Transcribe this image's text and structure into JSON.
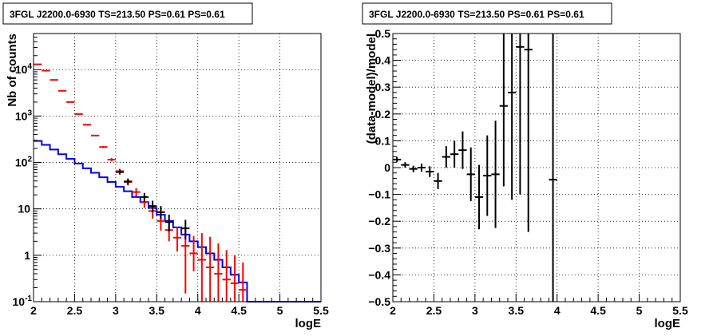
{
  "chart_data": [
    {
      "type": "scatter",
      "title": "3FGL J2200.0-6930 TS=213.50 PS=0.61 PS=0.61",
      "xlabel": "logE",
      "ylabel": "Nb of counts",
      "xlim": [
        2,
        5.5
      ],
      "ylim": [
        0.1,
        60000
      ],
      "ylog": true,
      "grid": true,
      "xticks": [
        "2",
        "2.5",
        "3",
        "3.5",
        "4",
        "4.5",
        "5",
        "5.5"
      ],
      "yticks": [
        {
          "value": 0.1,
          "label": "10",
          "sup": "-1"
        },
        {
          "value": 1,
          "label": "1",
          "sup": ""
        },
        {
          "value": 10,
          "label": "10",
          "sup": ""
        },
        {
          "value": 100,
          "label": "10",
          "sup": "2"
        },
        {
          "value": 1000,
          "label": "10",
          "sup": "3"
        },
        {
          "value": 10000,
          "label": "10",
          "sup": "4"
        }
      ],
      "series": [
        {
          "color": "#0000ff",
          "kind": "histogram",
          "x_edges": [
            2.0,
            2.1,
            2.2,
            2.3,
            2.4,
            2.5,
            2.6,
            2.7,
            2.8,
            2.9,
            3.0,
            3.1,
            3.2,
            3.3,
            3.4,
            3.5,
            3.6,
            3.7,
            3.8,
            3.9,
            4.0,
            4.1,
            4.2,
            4.3,
            4.4,
            4.5,
            4.6,
            4.7,
            4.8,
            4.9,
            5.0,
            5.1,
            5.2,
            5.3,
            5.4,
            5.5
          ],
          "values": [
            290,
            240,
            190,
            150,
            120,
            95,
            75,
            60,
            48,
            38,
            30,
            24,
            18,
            14,
            10.5,
            7.5,
            5.5,
            4.0,
            2.8,
            2.0,
            1.5,
            1.1,
            0.8,
            0.55,
            0.38,
            0.26,
            0.1,
            0.1,
            0.1,
            0.1,
            0.1,
            0.1,
            0.1,
            0.1,
            0.1
          ]
        },
        {
          "color": "#ff0000",
          "kind": "errorbars",
          "points": [
            {
              "x": 2.05,
              "y": 13000,
              "ylo": 13000,
              "yhi": 13000
            },
            {
              "x": 2.15,
              "y": 9500,
              "ylo": 9500,
              "yhi": 9500
            },
            {
              "x": 2.25,
              "y": 6000,
              "ylo": 6000,
              "yhi": 6000
            },
            {
              "x": 2.35,
              "y": 3500,
              "ylo": 3500,
              "yhi": 3500
            },
            {
              "x": 2.45,
              "y": 2000,
              "ylo": 2000,
              "yhi": 2000
            },
            {
              "x": 2.55,
              "y": 1100,
              "ylo": 1100,
              "yhi": 1100
            },
            {
              "x": 2.65,
              "y": 650,
              "ylo": 650,
              "yhi": 650
            },
            {
              "x": 2.75,
              "y": 380,
              "ylo": 370,
              "yhi": 390
            },
            {
              "x": 2.85,
              "y": 215,
              "ylo": 205,
              "yhi": 225
            },
            {
              "x": 2.95,
              "y": 115,
              "ylo": 105,
              "yhi": 125
            },
            {
              "x": 3.05,
              "y": 65,
              "ylo": 57,
              "yhi": 73
            },
            {
              "x": 3.15,
              "y": 38,
              "ylo": 32,
              "yhi": 44
            },
            {
              "x": 3.25,
              "y": 23,
              "ylo": 18.5,
              "yhi": 28
            },
            {
              "x": 3.35,
              "y": 14,
              "ylo": 10.5,
              "yhi": 18
            },
            {
              "x": 3.45,
              "y": 9,
              "ylo": 6.2,
              "yhi": 12
            },
            {
              "x": 3.55,
              "y": 5.5,
              "ylo": 3.4,
              "yhi": 8
            },
            {
              "x": 3.65,
              "y": 3.5,
              "ylo": 2.0,
              "yhi": 5.5
            },
            {
              "x": 3.75,
              "y": 2.4,
              "ylo": 1.2,
              "yhi": 4.0
            },
            {
              "x": 3.85,
              "y": 1.6,
              "ylo": 0.15,
              "yhi": 3.5
            },
            {
              "x": 3.95,
              "y": 1.1,
              "ylo": 0.45,
              "yhi": 2.6
            },
            {
              "x": 4.05,
              "y": 0.8,
              "ylo": 0.1,
              "yhi": 3.0
            },
            {
              "x": 4.15,
              "y": 0.55,
              "ylo": 0.1,
              "yhi": 2.5
            },
            {
              "x": 4.25,
              "y": 0.4,
              "ylo": 0.1,
              "yhi": 1.8
            },
            {
              "x": 4.35,
              "y": 0.3,
              "ylo": 0.1,
              "yhi": 1.3
            },
            {
              "x": 4.45,
              "y": 0.25,
              "ylo": 0.1,
              "yhi": 1.0
            },
            {
              "x": 4.55,
              "y": 0.18,
              "ylo": 0.1,
              "yhi": 0.7
            }
          ]
        },
        {
          "color": "#000000",
          "kind": "errorbars",
          "points": [
            {
              "x": 3.05,
              "y": 62,
              "ylo": 55,
              "yhi": 70
            },
            {
              "x": 3.15,
              "y": 39,
              "ylo": 33,
              "yhi": 45
            },
            {
              "x": 3.35,
              "y": 18,
              "ylo": 14,
              "yhi": 22
            },
            {
              "x": 3.45,
              "y": 11.5,
              "ylo": 8.5,
              "yhi": 15
            },
            {
              "x": 3.55,
              "y": 8.5,
              "ylo": 6,
              "yhi": 11.5
            },
            {
              "x": 3.65,
              "y": 5.2,
              "ylo": 3.3,
              "yhi": 7.5
            },
            {
              "x": 3.85,
              "y": 3.8,
              "ylo": 2.2,
              "yhi": 5.8
            }
          ]
        }
      ]
    },
    {
      "type": "scatter",
      "title": "3FGL J2200.0-6930 TS=213.50 PS=0.61 PS=0.61",
      "xlabel": "logE",
      "ylabel": "(data-model)/model",
      "xlim": [
        2,
        5.5
      ],
      "ylim": [
        -0.5,
        0.5
      ],
      "grid": true,
      "xticks": [
        "2",
        "2.5",
        "3",
        "3.5",
        "4",
        "4.5",
        "5",
        "5.5"
      ],
      "yticks": [
        "-0.5",
        "-0.4",
        "-0.3",
        "-0.2",
        "-0.1",
        "0",
        "0.1",
        "0.2",
        "0.3",
        "0.4",
        "0.5"
      ],
      "series": [
        {
          "color": "#000000",
          "kind": "errorbars",
          "points": [
            {
              "x": 2.05,
              "y": 0.03,
              "err": 0.01
            },
            {
              "x": 2.15,
              "y": 0.01,
              "err": 0.01
            },
            {
              "x": 2.25,
              "y": -0.005,
              "err": 0.012
            },
            {
              "x": 2.35,
              "y": 0.0,
              "err": 0.015
            },
            {
              "x": 2.45,
              "y": -0.015,
              "err": 0.02
            },
            {
              "x": 2.55,
              "y": -0.05,
              "err": 0.03
            },
            {
              "x": 2.65,
              "y": 0.04,
              "err": 0.04
            },
            {
              "x": 2.75,
              "y": 0.05,
              "err": 0.05
            },
            {
              "x": 2.85,
              "y": 0.065,
              "err": 0.07
            },
            {
              "x": 2.95,
              "y": -0.025,
              "err": 0.1
            },
            {
              "x": 3.05,
              "y": -0.11,
              "err": 0.12
            },
            {
              "x": 3.15,
              "y": -0.03,
              "err": 0.15
            },
            {
              "x": 3.25,
              "y": -0.025,
              "err": 0.2
            },
            {
              "x": 3.35,
              "y": 0.23,
              "err": 0.3
            },
            {
              "x": 3.45,
              "y": 0.28,
              "err": 0.4
            },
            {
              "x": 3.55,
              "y": 0.45,
              "err": 0.55
            },
            {
              "x": 3.65,
              "y": 0.44,
              "err": 0.68
            },
            {
              "x": 3.95,
              "y": -0.045,
              "err": 0.9
            }
          ]
        }
      ]
    }
  ]
}
